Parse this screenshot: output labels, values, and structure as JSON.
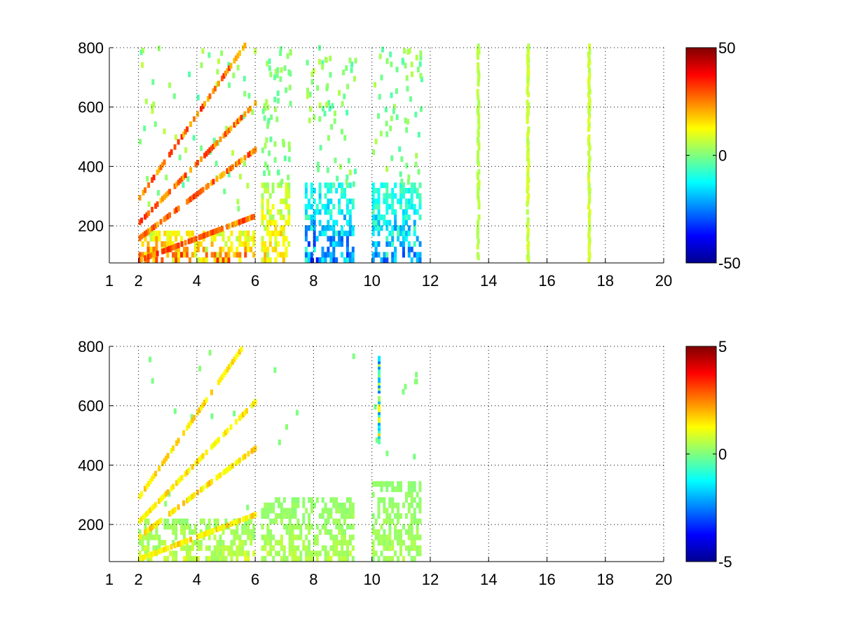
{
  "chart_data": [
    {
      "type": "heatmap",
      "title": "",
      "xlabel": "",
      "ylabel": "",
      "xlim": [
        1,
        20
      ],
      "ylim": [
        75,
        800
      ],
      "xticks": [
        1,
        2,
        4,
        6,
        8,
        10,
        12,
        14,
        16,
        18,
        20
      ],
      "yticks": [
        200,
        400,
        600,
        800
      ],
      "grid": true,
      "colorbar": {
        "min": -50,
        "max": 50,
        "ticks": [
          50,
          0,
          -50
        ],
        "colormap": "jet"
      },
      "features": [
        {
          "kind": "dense_bands",
          "x_range": [
            2.0,
            6.0
          ],
          "y_range": [
            75,
            180
          ],
          "value": 30
        },
        {
          "kind": "dense_bands",
          "x_range": [
            6.2,
            7.2
          ],
          "y_range": [
            75,
            330
          ],
          "value": 20
        },
        {
          "kind": "dense_bands",
          "x_range": [
            7.7,
            9.4
          ],
          "y_range": [
            75,
            330
          ],
          "value": -30
        },
        {
          "kind": "dense_bands",
          "x_range": [
            10.0,
            11.7
          ],
          "y_range": [
            75,
            330
          ],
          "value": -25
        },
        {
          "kind": "harmonic_band",
          "y_at_x4": 300,
          "value": 35
        },
        {
          "kind": "strip",
          "x": 15.3,
          "y_range": [
            75,
            800
          ],
          "value": 8
        },
        {
          "kind": "strip",
          "x": 13.6,
          "y_range": [
            75,
            800
          ],
          "value": 6
        },
        {
          "kind": "strip",
          "x": 17.4,
          "y_range": [
            75,
            800
          ],
          "value": 8
        }
      ]
    },
    {
      "type": "heatmap",
      "title": "",
      "xlabel": "",
      "ylabel": "",
      "xlim": [
        1,
        20
      ],
      "ylim": [
        75,
        800
      ],
      "xticks": [
        1,
        2,
        4,
        6,
        8,
        10,
        12,
        14,
        16,
        18,
        20
      ],
      "yticks": [
        200,
        400,
        600,
        800
      ],
      "grid": true,
      "colorbar": {
        "min": -5,
        "max": 5,
        "ticks": [
          5,
          0,
          -5
        ],
        "colormap": "jet"
      },
      "features": [
        {
          "kind": "dense_bands",
          "x_range": [
            2.0,
            6.0
          ],
          "y_range": [
            75,
            210
          ],
          "value": 0.8
        },
        {
          "kind": "dense_bands",
          "x_range": [
            6.2,
            9.4
          ],
          "y_range": [
            75,
            280
          ],
          "value": 0.6
        },
        {
          "kind": "dense_bands",
          "x_range": [
            10.0,
            11.7
          ],
          "y_range": [
            75,
            330
          ],
          "value": 0.5
        },
        {
          "kind": "harmonic_band",
          "y_at_x4": 300,
          "value": 2.0
        },
        {
          "kind": "column",
          "x": 10.2,
          "y_range": [
            470,
            760
          ],
          "value": -1.5
        }
      ]
    }
  ]
}
